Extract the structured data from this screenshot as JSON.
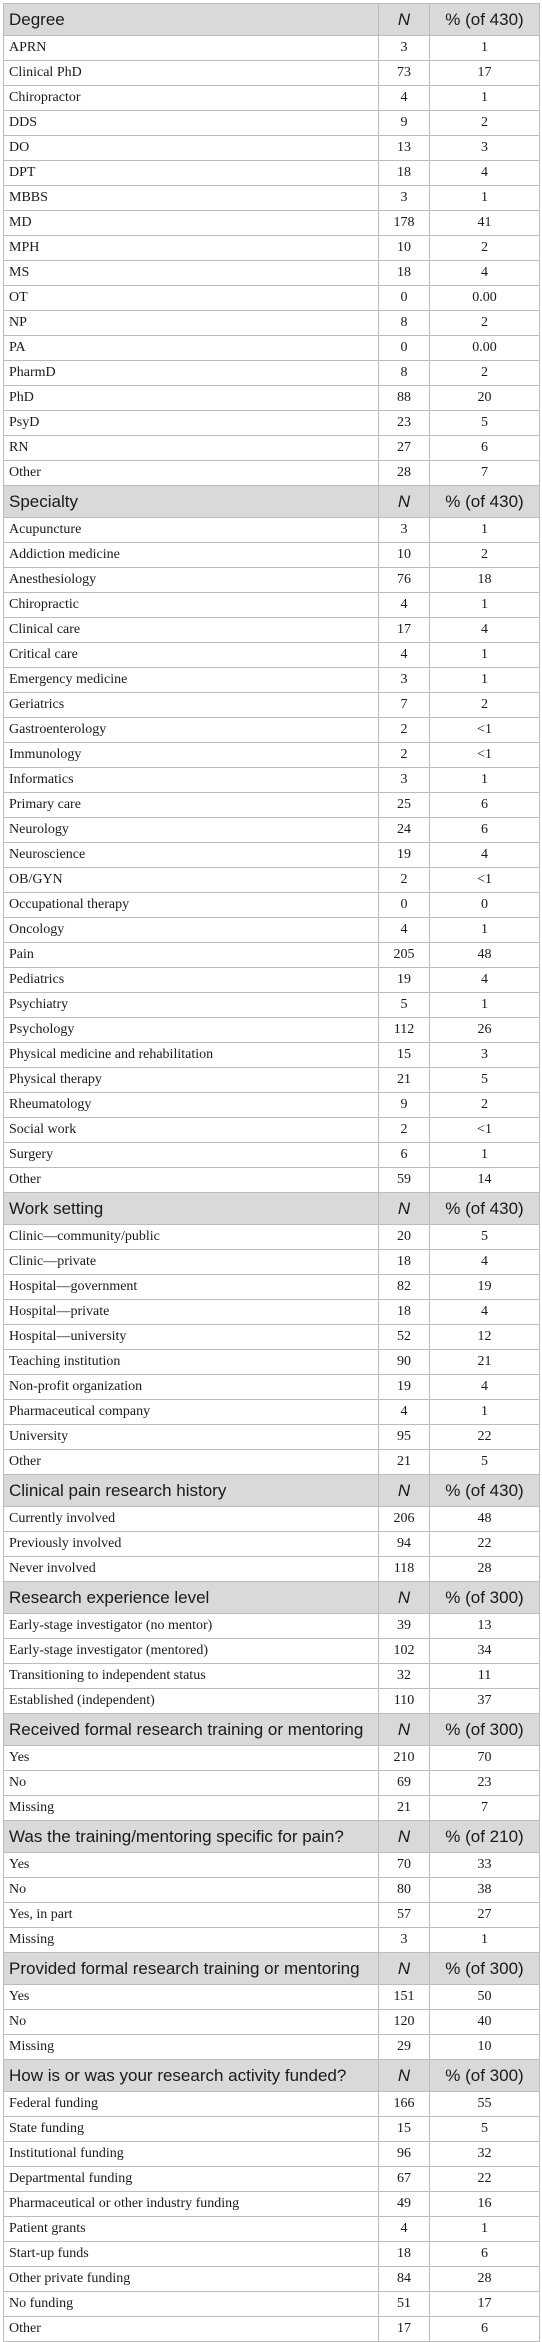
{
  "sections": [
    {
      "title": "Degree",
      "n_label": "N",
      "pct_label": "% (of 430)",
      "rows": [
        [
          "APRN",
          "3",
          "1"
        ],
        [
          "Clinical PhD",
          "73",
          "17"
        ],
        [
          "Chiropractor",
          "4",
          "1"
        ],
        [
          "DDS",
          "9",
          "2"
        ],
        [
          "DO",
          "13",
          "3"
        ],
        [
          "DPT",
          "18",
          "4"
        ],
        [
          "MBBS",
          "3",
          "1"
        ],
        [
          "MD",
          "178",
          "41"
        ],
        [
          "MPH",
          "10",
          "2"
        ],
        [
          "MS",
          "18",
          "4"
        ],
        [
          "OT",
          "0",
          "0.00"
        ],
        [
          "NP",
          "8",
          "2"
        ],
        [
          "PA",
          "0",
          "0.00"
        ],
        [
          "PharmD",
          "8",
          "2"
        ],
        [
          "PhD",
          "88",
          "20"
        ],
        [
          "PsyD",
          "23",
          "5"
        ],
        [
          "RN",
          "27",
          "6"
        ],
        [
          "Other",
          "28",
          "7"
        ]
      ]
    },
    {
      "title": "Specialty",
      "n_label": "N",
      "pct_label": "% (of 430)",
      "rows": [
        [
          "Acupuncture",
          "3",
          "1"
        ],
        [
          "Addiction medicine",
          "10",
          "2"
        ],
        [
          "Anesthesiology",
          "76",
          "18"
        ],
        [
          "Chiropractic",
          "4",
          "1"
        ],
        [
          "Clinical care",
          "17",
          "4"
        ],
        [
          "Critical care",
          "4",
          "1"
        ],
        [
          "Emergency medicine",
          "3",
          "1"
        ],
        [
          "Geriatrics",
          "7",
          "2"
        ],
        [
          "Gastroenterology",
          "2",
          "<1"
        ],
        [
          "Immunology",
          "2",
          "<1"
        ],
        [
          "Informatics",
          "3",
          "1"
        ],
        [
          "Primary care",
          "25",
          "6"
        ],
        [
          "Neurology",
          "24",
          "6"
        ],
        [
          "Neuroscience",
          "19",
          "4"
        ],
        [
          "OB/GYN",
          "2",
          "<1"
        ],
        [
          "Occupational therapy",
          "0",
          "0"
        ],
        [
          "Oncology",
          "4",
          "1"
        ],
        [
          "Pain",
          "205",
          "48"
        ],
        [
          "Pediatrics",
          "19",
          "4"
        ],
        [
          "Psychiatry",
          "5",
          "1"
        ],
        [
          "Psychology",
          "112",
          "26"
        ],
        [
          "Physical medicine and rehabilitation",
          "15",
          "3"
        ],
        [
          "Physical therapy",
          "21",
          "5"
        ],
        [
          "Rheumatology",
          "9",
          "2"
        ],
        [
          "Social work",
          "2",
          "<1"
        ],
        [
          "Surgery",
          "6",
          "1"
        ],
        [
          "Other",
          "59",
          "14"
        ]
      ]
    },
    {
      "title": "Work setting",
      "n_label": "N",
      "pct_label": "% (of 430)",
      "rows": [
        [
          "Clinic—community/public",
          "20",
          "5"
        ],
        [
          "Clinic—private",
          "18",
          "4"
        ],
        [
          "Hospital—government",
          "82",
          "19"
        ],
        [
          "Hospital—private",
          "18",
          "4"
        ],
        [
          "Hospital—university",
          "52",
          "12"
        ],
        [
          "Teaching institution",
          "90",
          "21"
        ],
        [
          "Non-profit organization",
          "19",
          "4"
        ],
        [
          "Pharmaceutical company",
          "4",
          "1"
        ],
        [
          "University",
          "95",
          "22"
        ],
        [
          "Other",
          "21",
          "5"
        ]
      ]
    },
    {
      "title": "Clinical pain research history",
      "n_label": "N",
      "pct_label": "% (of 430)",
      "rows": [
        [
          "Currently involved",
          "206",
          "48"
        ],
        [
          "Previously involved",
          "94",
          "22"
        ],
        [
          "Never involved",
          "118",
          "28"
        ]
      ]
    },
    {
      "title": "Research experience level",
      "n_label": "N",
      "pct_label": "% (of 300)",
      "rows": [
        [
          "Early-stage investigator (no mentor)",
          "39",
          "13"
        ],
        [
          "Early-stage investigator (mentored)",
          "102",
          "34"
        ],
        [
          "Transitioning to independent status",
          "32",
          "11"
        ],
        [
          "Established (independent)",
          "110",
          "37"
        ]
      ]
    },
    {
      "title": "Received formal research training or mentoring",
      "n_label": "N",
      "pct_label": "% (of 300)",
      "rows": [
        [
          "Yes",
          "210",
          "70"
        ],
        [
          "No",
          "69",
          "23"
        ],
        [
          "Missing",
          "21",
          "7"
        ]
      ]
    },
    {
      "title": "Was the training/mentoring specific for pain?",
      "n_label": "N",
      "pct_label": "% (of 210)",
      "rows": [
        [
          "Yes",
          "70",
          "33"
        ],
        [
          "No",
          "80",
          "38"
        ],
        [
          "Yes, in part",
          "57",
          "27"
        ],
        [
          "Missing",
          "3",
          "1"
        ]
      ]
    },
    {
      "title": "Provided formal research training or mentoring",
      "n_label": "N",
      "pct_label": "% (of 300)",
      "rows": [
        [
          "Yes",
          "151",
          "50"
        ],
        [
          "No",
          "120",
          "40"
        ],
        [
          "Missing",
          "29",
          "10"
        ]
      ]
    },
    {
      "title": "How is or was your research activity funded?",
      "n_label": "N",
      "pct_label": "% (of 300)",
      "rows": [
        [
          "Federal funding",
          "166",
          "55"
        ],
        [
          "State funding",
          "15",
          "5"
        ],
        [
          "Institutional funding",
          "96",
          "32"
        ],
        [
          "Departmental funding",
          "67",
          "22"
        ],
        [
          "Pharmaceutical or other industry funding",
          "49",
          "16"
        ],
        [
          "Patient grants",
          "4",
          "1"
        ],
        [
          "Start-up funds",
          "18",
          "6"
        ],
        [
          "Other private funding",
          "84",
          "28"
        ],
        [
          "No funding",
          "51",
          "17"
        ],
        [
          "Other",
          "17",
          "6"
        ]
      ]
    }
  ]
}
